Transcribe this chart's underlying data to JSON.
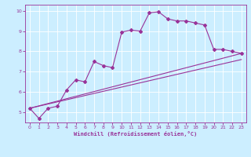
{
  "xlabel": "Windchill (Refroidissement éolien,°C)",
  "ylabel": "",
  "bg_color": "#cceeff",
  "line_color": "#993399",
  "grid_color": "#ffffff",
  "spine_color": "#993399",
  "xlim": [
    -0.5,
    23.5
  ],
  "ylim": [
    4.5,
    10.3
  ],
  "xticks": [
    0,
    1,
    2,
    3,
    4,
    5,
    6,
    7,
    8,
    9,
    10,
    11,
    12,
    13,
    14,
    15,
    16,
    17,
    18,
    19,
    20,
    21,
    22,
    23
  ],
  "yticks": [
    5,
    6,
    7,
    8,
    9,
    10
  ],
  "line1_x": [
    0,
    1,
    2,
    3,
    4,
    5,
    6,
    7,
    8,
    9,
    10,
    11,
    12,
    13,
    14,
    15,
    16,
    17,
    18,
    19,
    20,
    21,
    22,
    23
  ],
  "line1_y": [
    5.2,
    4.7,
    5.2,
    5.3,
    6.1,
    6.6,
    6.5,
    7.5,
    7.3,
    7.2,
    8.95,
    9.05,
    9.0,
    9.9,
    9.95,
    9.6,
    9.5,
    9.5,
    9.4,
    9.3,
    8.1,
    8.1,
    8.0,
    7.9
  ],
  "line2_x": [
    0,
    23
  ],
  "line2_y": [
    5.2,
    7.9
  ],
  "line3_x": [
    0,
    23
  ],
  "line3_y": [
    5.2,
    7.6
  ],
  "marker": "D",
  "markersize": 2.0,
  "linewidth": 0.8,
  "tick_fontsize": 4.5,
  "xlabel_fontsize": 5.0
}
